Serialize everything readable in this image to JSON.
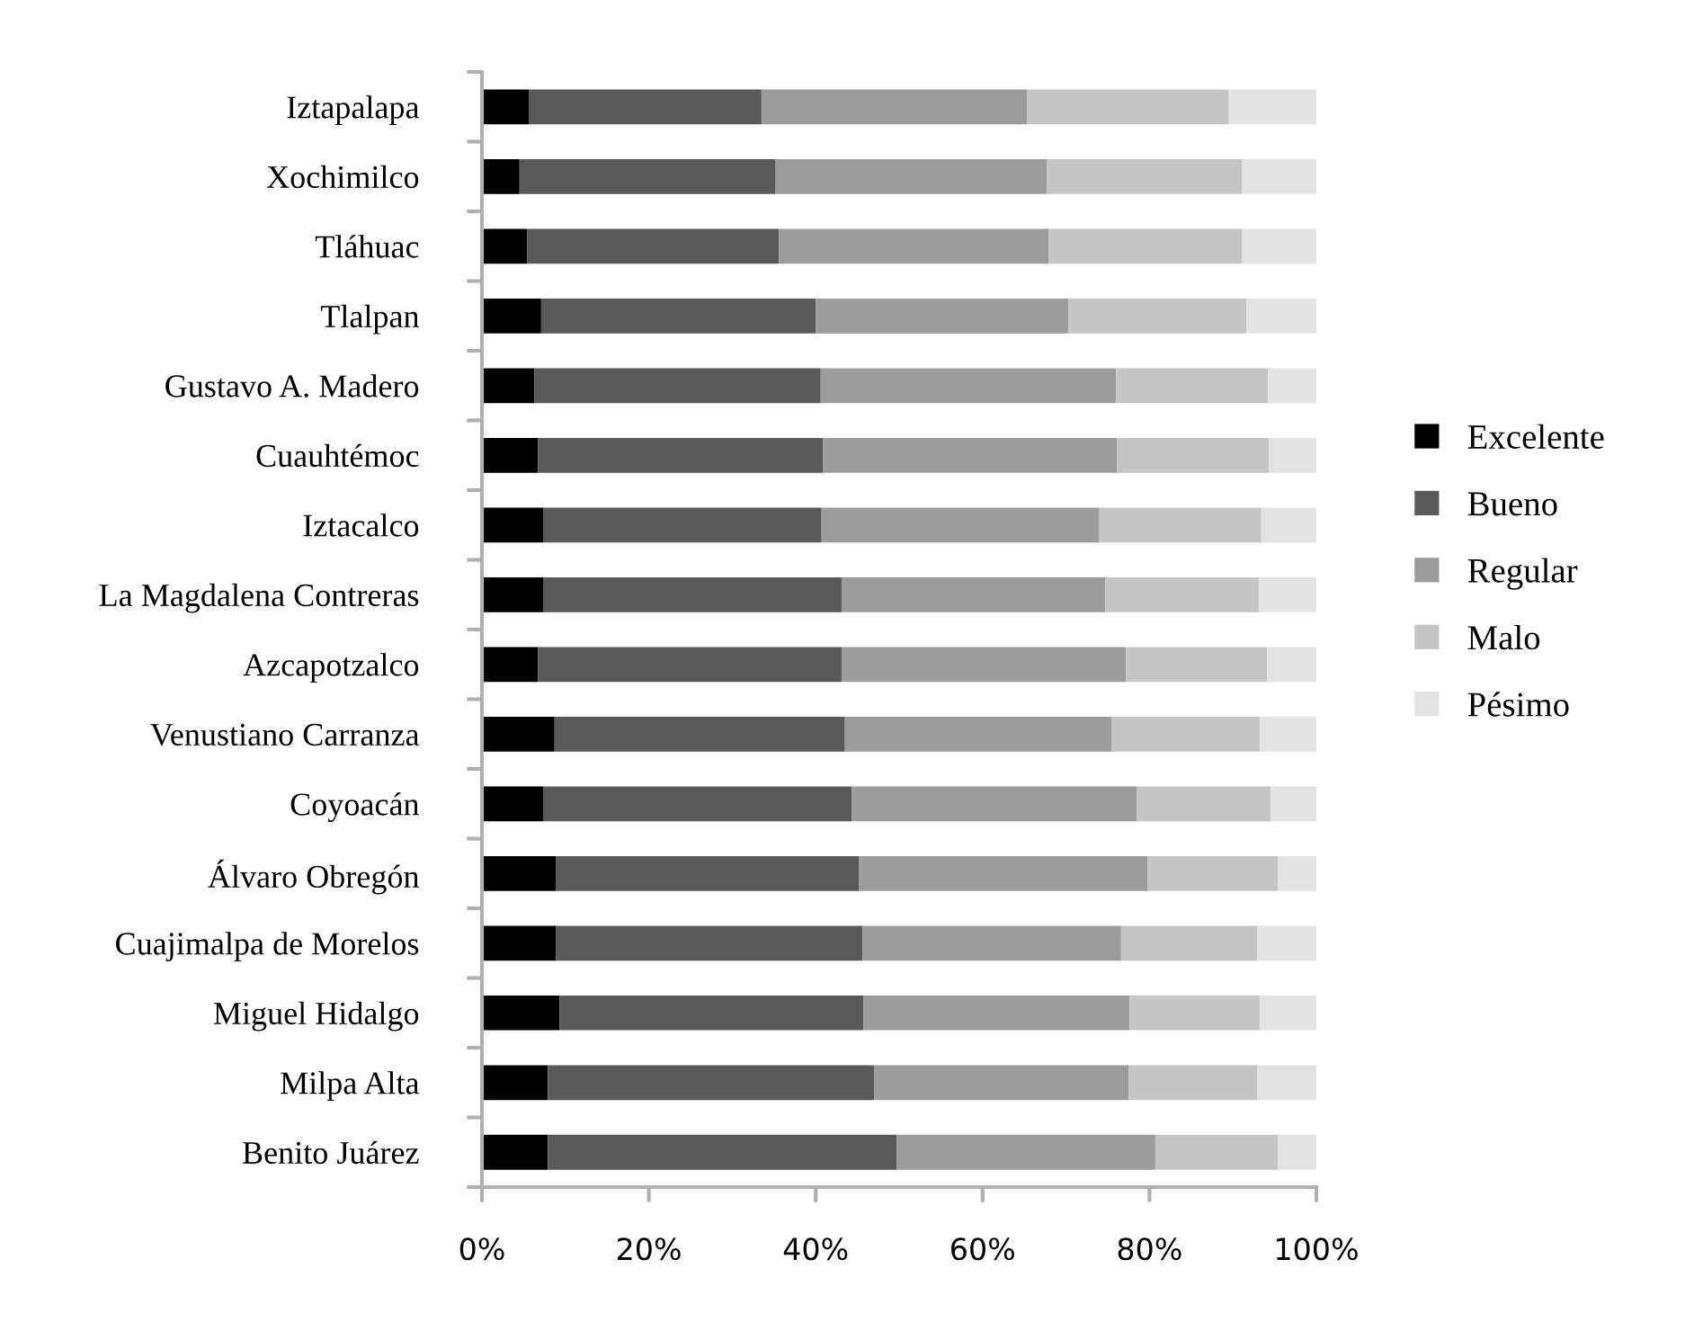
{
  "chart_data": {
    "type": "bar",
    "orientation": "horizontal",
    "stacked": true,
    "categories": [
      "Iztapalapa",
      "Xochimilco",
      "Tláhuac",
      "Tlalpan",
      "Gustavo A. Madero",
      "Cuauhtémoc",
      "Iztacalco",
      "La Magdalena Contreras",
      "Azcapotzalco",
      "Venustiano Carranza",
      "Coyoacán",
      "Álvaro Obregón",
      "Cuajimalpa de Morelos",
      "Miguel Hidalgo",
      "Milpa Alta",
      "Benito Juárez"
    ],
    "series": [
      {
        "name": "Excelente",
        "color": "#000000",
        "values": [
          5.6,
          4.5,
          5.4,
          7.1,
          6.3,
          6.7,
          7.4,
          7.4,
          6.7,
          8.7,
          7.4,
          8.9,
          8.9,
          9.3,
          7.9,
          7.9
        ]
      },
      {
        "name": "Bueno",
        "color": "#595959",
        "values": [
          27.9,
          30.7,
          30.2,
          32.9,
          34.3,
          34.2,
          33.3,
          35.7,
          36.4,
          34.8,
          36.9,
          36.3,
          36.7,
          36.4,
          39.1,
          41.8
        ]
      },
      {
        "name": "Regular",
        "color": "#9c9c9c",
        "values": [
          31.8,
          32.5,
          32.3,
          30.3,
          35.4,
          35.2,
          33.3,
          31.6,
          34.1,
          32.0,
          34.2,
          34.6,
          31.0,
          31.9,
          30.5,
          31.0
        ]
      },
      {
        "name": "Malo",
        "color": "#c5c5c5",
        "values": [
          24.2,
          23.4,
          23.2,
          21.3,
          18.2,
          18.2,
          19.4,
          18.4,
          16.9,
          17.7,
          16.0,
          15.6,
          16.3,
          15.6,
          15.4,
          14.7
        ]
      },
      {
        "name": "Pésimo",
        "color": "#e3e3e3",
        "values": [
          10.5,
          8.9,
          8.9,
          8.4,
          5.8,
          5.7,
          6.6,
          6.9,
          5.9,
          6.8,
          5.5,
          4.6,
          7.1,
          6.8,
          7.1,
          4.6
        ]
      }
    ],
    "xlim": [
      0,
      100
    ],
    "xticks": [
      {
        "value": 0,
        "label": "0%"
      },
      {
        "value": 20,
        "label": "20%"
      },
      {
        "value": 40,
        "label": "40%"
      },
      {
        "value": 60,
        "label": "60%"
      },
      {
        "value": 80,
        "label": "80%"
      },
      {
        "value": 100,
        "label": "100%"
      }
    ],
    "grid": false,
    "legend": "right"
  }
}
